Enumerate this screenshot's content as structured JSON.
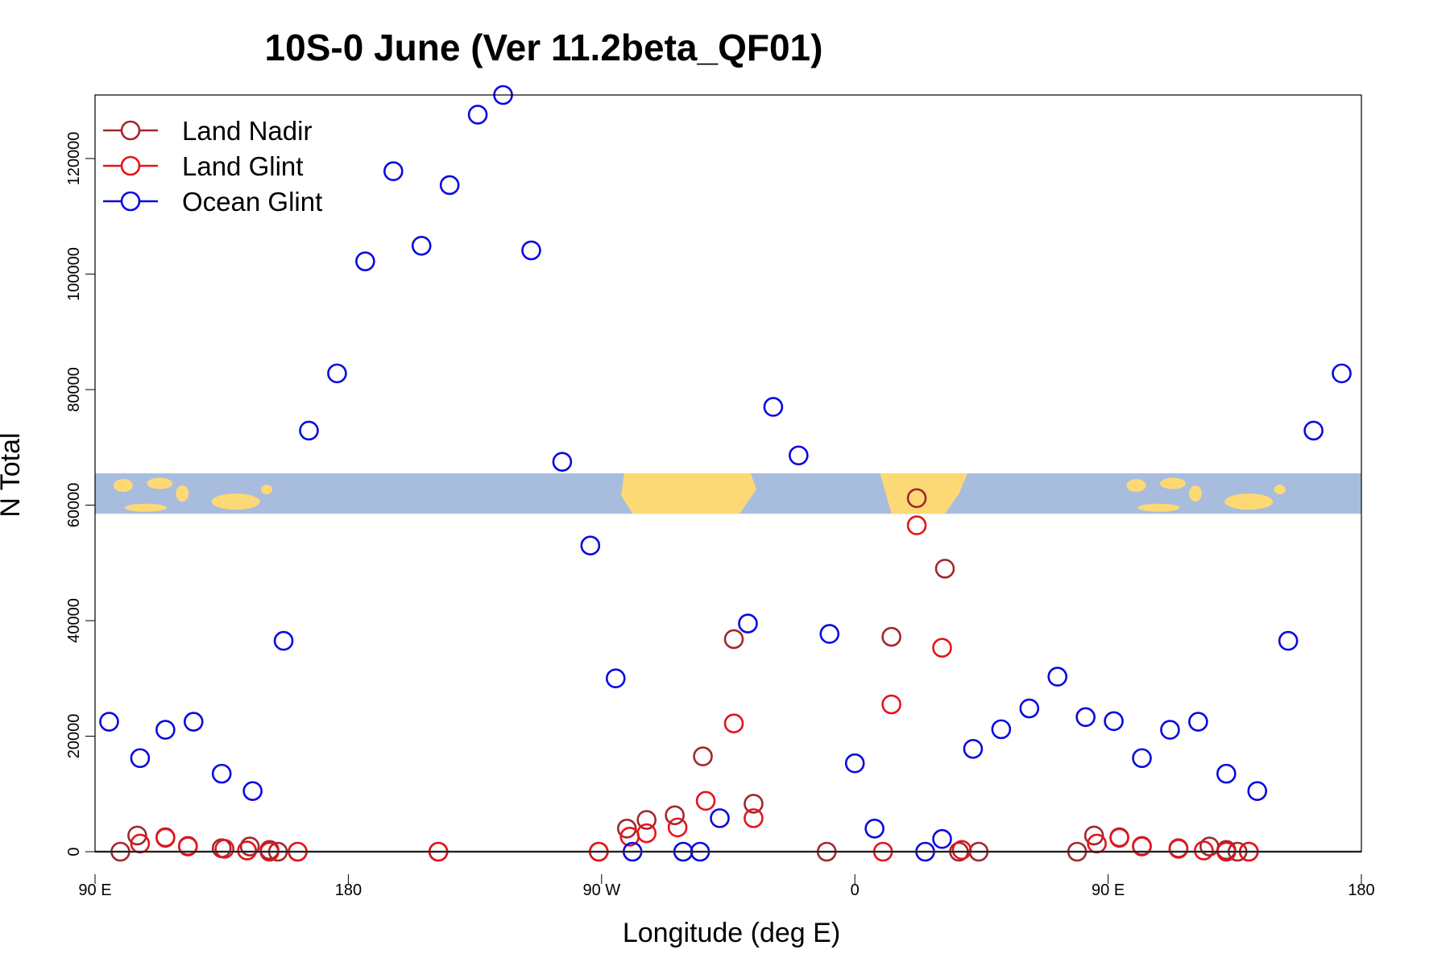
{
  "chart_data": {
    "type": "scatter",
    "title": "10S-0 June (Ver 11.2beta_QF01)",
    "xlabel": "Longitude (deg E)",
    "ylabel": "N Total",
    "x_range_note": "longitude axis wraps: 90 E -> 180 -> 90 W -> 0 -> 90 E -> 180 (plotted as continuous 90..540)",
    "xlim": [
      90,
      540
    ],
    "ylim": [
      0,
      130000
    ],
    "x_ticks": [
      {
        "value": 90,
        "label": "90 E"
      },
      {
        "value": 180,
        "label": "180"
      },
      {
        "value": 270,
        "label": "90 W"
      },
      {
        "value": 360,
        "label": "0"
      },
      {
        "value": 450,
        "label": "90 E"
      },
      {
        "value": 540,
        "label": "180"
      }
    ],
    "y_ticks": [
      {
        "value": 0,
        "label": "0"
      },
      {
        "value": 20000,
        "label": "20000"
      },
      {
        "value": 40000,
        "label": "40000"
      },
      {
        "value": 60000,
        "label": "60000"
      },
      {
        "value": 80000,
        "label": "80000"
      },
      {
        "value": 100000,
        "label": "100000"
      },
      {
        "value": 120000,
        "label": "120000"
      }
    ],
    "map_band": {
      "y_from": 58500,
      "y_to": 65500,
      "ocean_color": "#a8bddd",
      "land_color": "#fdd976"
    },
    "legend": {
      "position": "top-left"
    },
    "series": [
      {
        "name": "Land Nadir",
        "color": "#a0282d",
        "points": [
          [
            99,
            0
          ],
          [
            105,
            2800
          ],
          [
            115,
            2500
          ],
          [
            123,
            1000
          ],
          [
            135,
            600
          ],
          [
            145,
            900
          ],
          [
            152,
            300
          ],
          [
            155,
            0
          ],
          [
            162,
            0
          ],
          [
            212,
            0
          ],
          [
            269,
            0
          ],
          [
            279,
            4000
          ],
          [
            286,
            5500
          ],
          [
            296,
            6300
          ],
          [
            306,
            16500
          ],
          [
            317,
            36800
          ],
          [
            324,
            8300
          ],
          [
            350,
            0
          ],
          [
            373,
            37200
          ],
          [
            382,
            61200
          ],
          [
            392,
            49000
          ],
          [
            397,
            0
          ],
          [
            404,
            0
          ],
          [
            439,
            0
          ],
          [
            445,
            2800
          ],
          [
            454,
            2500
          ],
          [
            462,
            1000
          ],
          [
            475,
            600
          ],
          [
            486,
            900
          ],
          [
            492,
            300
          ],
          [
            496,
            0
          ],
          [
            500,
            0
          ]
        ]
      },
      {
        "name": "Land Glint",
        "color": "#e4141b",
        "points": [
          [
            106,
            1400
          ],
          [
            115,
            2400
          ],
          [
            123,
            900
          ],
          [
            136,
            500
          ],
          [
            144,
            200
          ],
          [
            152,
            0
          ],
          [
            162,
            0
          ],
          [
            212,
            0
          ],
          [
            269,
            0
          ],
          [
            280,
            2600
          ],
          [
            286,
            3200
          ],
          [
            297,
            4200
          ],
          [
            307,
            8800
          ],
          [
            317,
            22200
          ],
          [
            324,
            5800
          ],
          [
            370,
            0
          ],
          [
            373,
            25500
          ],
          [
            382,
            56500
          ],
          [
            391,
            35300
          ],
          [
            398,
            300
          ],
          [
            446,
            1400
          ],
          [
            454,
            2400
          ],
          [
            462,
            900
          ],
          [
            475,
            500
          ],
          [
            484,
            200
          ],
          [
            492,
            0
          ],
          [
            500,
            0
          ]
        ]
      },
      {
        "name": "Ocean Glint",
        "color": "#0a0ae0",
        "points": [
          [
            95,
            22500
          ],
          [
            106,
            16200
          ],
          [
            115,
            21100
          ],
          [
            125,
            22500
          ],
          [
            135,
            13500
          ],
          [
            146,
            10500
          ],
          [
            157,
            36500
          ],
          [
            166,
            72900
          ],
          [
            176,
            82800
          ],
          [
            186,
            102200
          ],
          [
            196,
            117800
          ],
          [
            206,
            104900
          ],
          [
            216,
            115400
          ],
          [
            226,
            127600
          ],
          [
            235,
            131000
          ],
          [
            245,
            104100
          ],
          [
            256,
            67500
          ],
          [
            266,
            53000
          ],
          [
            275,
            30000
          ],
          [
            281,
            0
          ],
          [
            299,
            0
          ],
          [
            305,
            0
          ],
          [
            312,
            5800
          ],
          [
            322,
            39500
          ],
          [
            331,
            77000
          ],
          [
            340,
            68600
          ],
          [
            351,
            37700
          ],
          [
            360,
            15300
          ],
          [
            367,
            4000
          ],
          [
            385,
            0
          ],
          [
            391,
            2200
          ],
          [
            402,
            17800
          ],
          [
            412,
            21200
          ],
          [
            422,
            24800
          ],
          [
            432,
            30300
          ],
          [
            442,
            23300
          ],
          [
            452,
            22600
          ],
          [
            462,
            16200
          ],
          [
            472,
            21100
          ],
          [
            482,
            22500
          ],
          [
            492,
            13500
          ],
          [
            503,
            10500
          ],
          [
            514,
            36500
          ],
          [
            523,
            72900
          ],
          [
            533,
            82800
          ]
        ]
      }
    ]
  }
}
